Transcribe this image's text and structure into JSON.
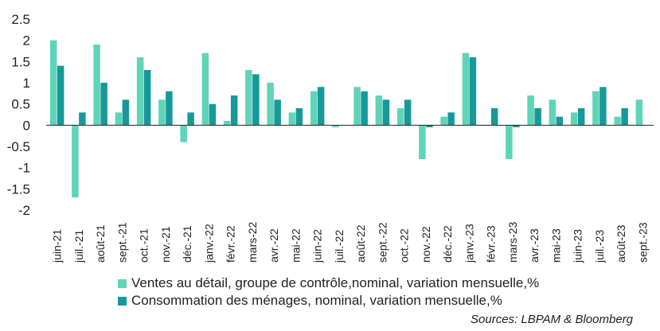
{
  "chart_data": {
    "type": "bar",
    "categories": [
      "juin-21",
      "juil.-21",
      "août-21",
      "sept.-21",
      "oct.-21",
      "nov.-21",
      "déc.-21",
      "janv.-22",
      "févr.-22",
      "mars-22",
      "avr.-22",
      "mai-22",
      "juin-22",
      "juil.-22",
      "août-22",
      "sept.-22",
      "oct.-22",
      "nov.-22",
      "déc.-22",
      "janv.-23",
      "févr.-23",
      "mars-23",
      "avr.-23",
      "mai-23",
      "juin-23",
      "juil.-23",
      "août-23",
      "sept.-23"
    ],
    "series": [
      {
        "name": "Ventes au détail, groupe de contrôle,nominal, variation mensuelle,%",
        "color": "#5fd4b8",
        "values": [
          2.0,
          -1.7,
          1.9,
          0.3,
          1.6,
          0.6,
          -0.4,
          1.7,
          0.1,
          1.3,
          1.0,
          0.3,
          0.8,
          -0.05,
          0.9,
          0.7,
          0.4,
          -0.8,
          0.2,
          1.7,
          0.0,
          -0.8,
          0.7,
          0.6,
          0.3,
          0.8,
          0.2,
          0.6
        ]
      },
      {
        "name": "Consommation des ménages, nominal, variation mensuelle,%",
        "color": "#17999a",
        "values": [
          1.4,
          0.3,
          1.0,
          0.6,
          1.3,
          0.8,
          0.3,
          0.5,
          0.7,
          1.2,
          0.6,
          0.4,
          0.9,
          null,
          0.8,
          0.6,
          0.6,
          -0.05,
          0.3,
          1.6,
          0.4,
          -0.05,
          0.4,
          0.2,
          0.4,
          0.9,
          0.4,
          null
        ]
      }
    ],
    "yticks": [
      "2.5",
      "2",
      "1.5",
      "1",
      "0.5",
      "0",
      "-0.5",
      "-1",
      "-1.5",
      "-2"
    ],
    "ylim": [
      -2,
      2.5
    ],
    "grid": false,
    "legend": "bottom"
  },
  "source": "Sources: LBPAM & Bloomberg"
}
